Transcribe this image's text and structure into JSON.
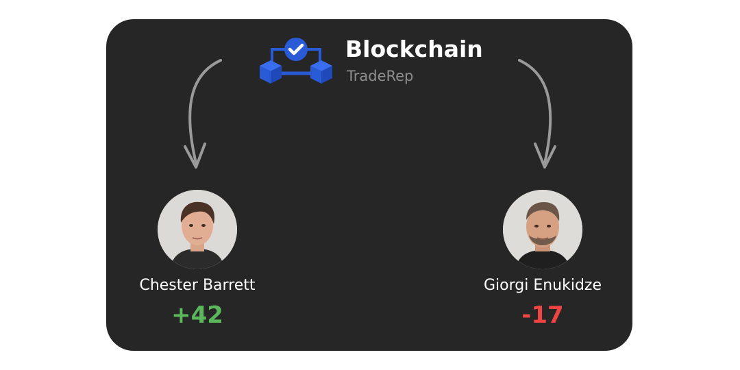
{
  "brand": {
    "title": "Blockchain",
    "subtitle": "TradeRep",
    "logo_icon": "blockchain-verified-icon",
    "accent_color": "#2a5bd7"
  },
  "traders": [
    {
      "name": "Chester Barrett",
      "score": "+42",
      "score_color": "#5cb85c",
      "avatar_icon": "avatar-icon"
    },
    {
      "name": "Giorgi Enukidze",
      "score": "-17",
      "score_color": "#ef4444",
      "avatar_icon": "avatar-icon"
    }
  ],
  "colors": {
    "card_background": "#262626",
    "arrow": "#9a9a9a"
  }
}
